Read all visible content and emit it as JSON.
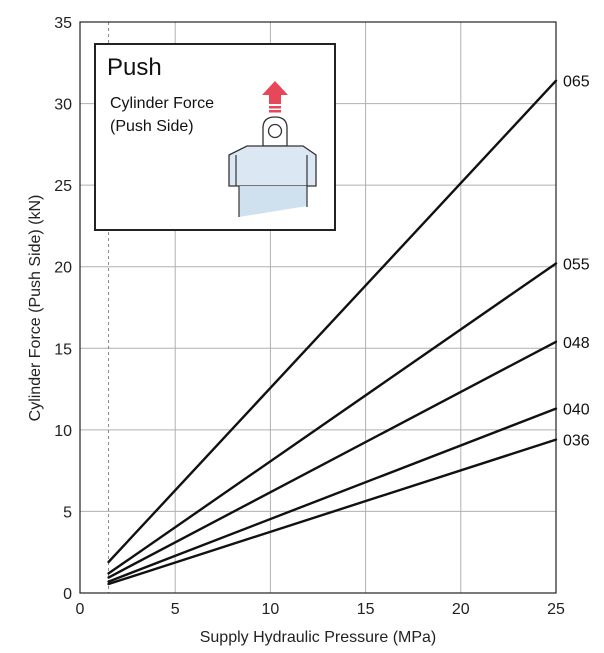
{
  "chart_data": {
    "type": "line",
    "xlabel": "Supply Hydraulic Pressure (MPa)",
    "ylabel": "Cylinder Force (Push Side) (kN)",
    "xlim": [
      0,
      25
    ],
    "ylim": [
      0,
      35
    ],
    "xticks": [
      0,
      5,
      10,
      15,
      20,
      25
    ],
    "yticks": [
      0,
      5,
      10,
      15,
      20,
      25,
      30,
      35
    ],
    "grid": true,
    "min_pressure_marker": 1.5,
    "series": [
      {
        "name": "065",
        "x": [
          1.5,
          25
        ],
        "y": [
          1.9,
          31.4
        ]
      },
      {
        "name": "055",
        "x": [
          1.5,
          25
        ],
        "y": [
          1.2,
          20.2
        ]
      },
      {
        "name": "048",
        "x": [
          1.5,
          25
        ],
        "y": [
          0.95,
          15.4
        ]
      },
      {
        "name": "040",
        "x": [
          1.5,
          25
        ],
        "y": [
          0.7,
          11.3
        ]
      },
      {
        "name": "036",
        "x": [
          1.5,
          25
        ],
        "y": [
          0.55,
          9.4
        ]
      }
    ],
    "inset": {
      "title": "Push",
      "subtitle_line1": "Cylinder Force",
      "subtitle_line2": "(Push Side)",
      "arrow_color": "#e8475a",
      "icon": "cylinder-push-icon"
    }
  }
}
